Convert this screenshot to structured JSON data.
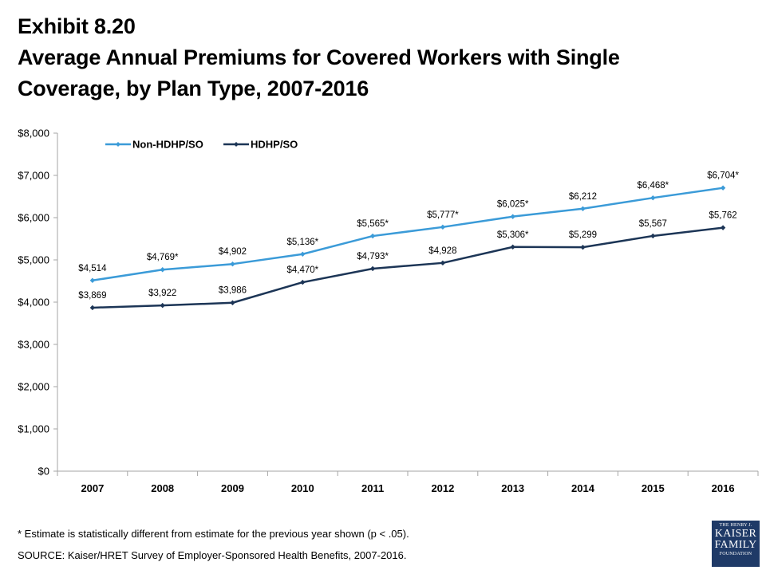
{
  "header": {
    "exhibit": "Exhibit 8.20",
    "title_lines": [
      "Average Annual Premiums for Covered Workers with Single",
      "Coverage, by Plan Type, 2007-2016"
    ]
  },
  "chart_data": {
    "type": "line",
    "categories": [
      "2007",
      "2008",
      "2009",
      "2010",
      "2011",
      "2012",
      "2013",
      "2014",
      "2015",
      "2016"
    ],
    "ylim": [
      0,
      8000
    ],
    "yticks": [
      0,
      1000,
      2000,
      3000,
      4000,
      5000,
      6000,
      7000,
      8000
    ],
    "ytick_labels": [
      "$0",
      "$1,000",
      "$2,000",
      "$3,000",
      "$4,000",
      "$5,000",
      "$6,000",
      "$7,000",
      "$8,000"
    ],
    "grid": false,
    "legend_position": "top-left",
    "series": [
      {
        "name": "Non-HDHP/SO",
        "color": "#3b9bd8",
        "values": [
          4514,
          4769,
          4902,
          5136,
          5565,
          5777,
          6025,
          6212,
          6468,
          6704
        ],
        "labels": [
          "$4,514",
          "$4,769*",
          "$4,902",
          "$5,136*",
          "$5,565*",
          "$5,777*",
          "$6,025*",
          "$6,212",
          "$6,468*",
          "$6,704*"
        ]
      },
      {
        "name": "HDHP/SO",
        "color": "#1c3556",
        "values": [
          3869,
          3922,
          3986,
          4470,
          4793,
          4928,
          5306,
          5299,
          5567,
          5762
        ],
        "labels": [
          "$3,869",
          "$3,922",
          "$3,986",
          "$4,470*",
          "$4,793*",
          "$4,928",
          "$5,306*",
          "$5,299",
          "$5,567",
          "$5,762"
        ]
      }
    ]
  },
  "footer": {
    "footnote": "* Estimate is statistically different from estimate for the previous year shown (p < .05).",
    "source": "SOURCE:  Kaiser/HRET Survey of Employer-Sponsored Health Benefits, 2007-2016."
  },
  "logo": {
    "line1": "THE HENRY J.",
    "line2": "KAISER",
    "line3": "FAMILY",
    "line4": "FOUNDATION"
  }
}
